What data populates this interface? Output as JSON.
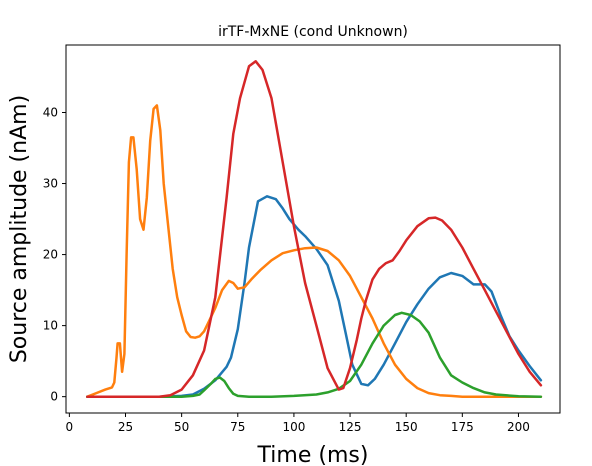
{
  "chart_data": {
    "type": "line",
    "title": "irTF-MxNE (cond Unknown)",
    "xlabel": "Time (ms)",
    "ylabel": "Source amplitude (nAm)",
    "xlim": [
      -1.5,
      218.5
    ],
    "ylim": [
      -2.3,
      49.5
    ],
    "xticks": [
      0,
      25,
      50,
      75,
      100,
      125,
      150,
      175,
      200
    ],
    "yticks": [
      0,
      10,
      20,
      30,
      40
    ],
    "grid": false,
    "legend": "none",
    "series": [
      {
        "color": "#1f77b4",
        "x": [
          8,
          40,
          50,
          55,
          60,
          65,
          70,
          72,
          75,
          78,
          80,
          84,
          88,
          92,
          95,
          98,
          102,
          105,
          110,
          115,
          120,
          123,
          126,
          130,
          133,
          136,
          140,
          145,
          150,
          155,
          160,
          165,
          170,
          175,
          180,
          185,
          188,
          192,
          196,
          200,
          205,
          210
        ],
        "y": [
          0,
          0,
          0.1,
          0.3,
          1.1,
          2.3,
          4.2,
          5.5,
          9.5,
          16,
          21,
          27.5,
          28.2,
          27.8,
          26.5,
          25,
          23.5,
          22.6,
          20.8,
          18.5,
          13.5,
          9,
          4.5,
          1.8,
          1.6,
          2.5,
          4.5,
          7.5,
          10.5,
          13,
          15.2,
          16.8,
          17.4,
          17,
          15.8,
          15.8,
          14.8,
          11.5,
          8.5,
          6.5,
          4.3,
          2.3
        ]
      },
      {
        "color": "#ff7f0e",
        "x": [
          8,
          12,
          16,
          19,
          20,
          21,
          21.5,
          22.5,
          23.5,
          24.5,
          25.5,
          26.5,
          27.5,
          28.5,
          30,
          31.5,
          33,
          34.5,
          36,
          37.5,
          39,
          40.5,
          42,
          44,
          46,
          48,
          50,
          52,
          54,
          56,
          58,
          60,
          62,
          65,
          68,
          71,
          73,
          75,
          78,
          81,
          85,
          90,
          95,
          100,
          105,
          110,
          115,
          120,
          125,
          130,
          135,
          140,
          145,
          150,
          155,
          160,
          165,
          170,
          175,
          180,
          190,
          200,
          210
        ],
        "y": [
          0,
          0.5,
          1.0,
          1.3,
          2,
          5.5,
          7.5,
          7.5,
          3.5,
          6,
          20,
          33,
          36.5,
          36.5,
          32,
          25,
          23.5,
          28,
          36,
          40.5,
          41,
          37.5,
          30,
          24,
          18,
          14,
          11.5,
          9.2,
          8.4,
          8.3,
          8.5,
          9.2,
          10.5,
          12.5,
          15,
          16.3,
          16.0,
          15.2,
          15.4,
          16.5,
          17.8,
          19.2,
          20.2,
          20.6,
          20.9,
          21.0,
          20.5,
          19.2,
          17,
          14,
          11,
          7.5,
          4.5,
          2.5,
          1.2,
          0.5,
          0.2,
          0.1,
          0,
          0,
          0,
          0,
          0
        ]
      },
      {
        "color": "#2ca02c",
        "x": [
          8,
          50,
          55,
          58,
          60,
          63,
          65,
          67,
          69,
          71,
          73,
          75,
          80,
          90,
          100,
          110,
          115,
          120,
          125,
          130,
          135,
          140,
          145,
          148,
          152,
          156,
          160,
          165,
          170,
          175,
          180,
          185,
          190,
          200,
          210
        ],
        "y": [
          0,
          0,
          0.1,
          0.3,
          0.9,
          1.8,
          2.5,
          2.7,
          2.2,
          1.2,
          0.4,
          0.1,
          0,
          0,
          0.1,
          0.3,
          0.6,
          1.1,
          2.2,
          4.5,
          7.5,
          10,
          11.5,
          11.8,
          11.5,
          10.6,
          9,
          5.5,
          3,
          2,
          1.2,
          0.6,
          0.3,
          0.05,
          0
        ]
      },
      {
        "color": "#d62728",
        "x": [
          8,
          40,
          45,
          50,
          55,
          60,
          65,
          70,
          73,
          76,
          80,
          83,
          86,
          90,
          95,
          100,
          105,
          110,
          115,
          120,
          122,
          125,
          128,
          130,
          132,
          135,
          138,
          141,
          144,
          147,
          150,
          155,
          160,
          163,
          166,
          170,
          175,
          180,
          185,
          190,
          195,
          200,
          205,
          210
        ],
        "y": [
          0,
          0,
          0.2,
          1,
          3,
          6.5,
          14,
          28,
          37,
          42,
          46.5,
          47.2,
          46,
          42,
          33,
          24,
          16,
          10,
          4,
          1,
          1.2,
          4,
          8,
          11,
          13.5,
          16.5,
          18,
          18.8,
          19.2,
          20.5,
          22,
          24,
          25.1,
          25.2,
          24.8,
          23.5,
          21,
          18,
          15,
          12,
          9,
          6,
          3.5,
          1.6
        ]
      }
    ]
  }
}
